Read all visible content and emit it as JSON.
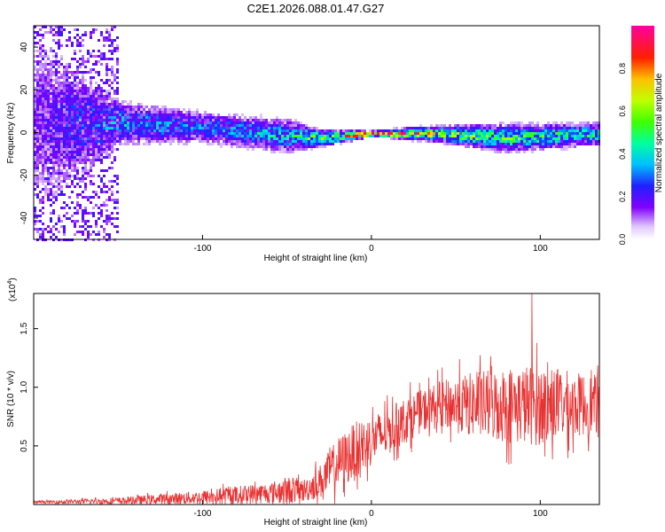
{
  "title": "C2E1.2026.088.01.47.G27",
  "chart_data": [
    {
      "type": "heatmap",
      "xlabel": "Height of straight line (km)",
      "ylabel": "Frequency (Hz)",
      "xlim": [
        -200,
        135
      ],
      "ylim": [
        -50,
        50
      ],
      "xticks": [
        -100,
        0,
        100
      ],
      "yticks": [
        -40,
        -20,
        0,
        20,
        40
      ],
      "colorbar": {
        "label": "Normalized spectral amplitude",
        "range": [
          0,
          1
        ],
        "ticks": [
          "0.0",
          "0.2",
          "0.4",
          "0.6",
          "0.8"
        ],
        "tick_values": [
          0,
          0.2,
          0.4,
          0.6,
          0.8
        ]
      },
      "ridge": {
        "description_values_km": [
          -200,
          -150,
          -100,
          -50,
          -30,
          0,
          40,
          80,
          135
        ],
        "center_hz": [
          5,
          5,
          3,
          -1,
          -2,
          0,
          0,
          -2,
          0
        ],
        "half_width_hz": [
          35,
          8,
          6,
          6,
          3,
          1,
          3,
          5,
          4
        ],
        "peak_amplitude": [
          0.15,
          0.35,
          0.3,
          0.4,
          0.55,
          0.95,
          0.6,
          0.5,
          0.45
        ]
      }
    },
    {
      "type": "line",
      "xlabel": "Height of straight line (km)",
      "ylabel": "SNR (10 * v/v)",
      "y_multiplier_label": "(x10",
      "y_multiplier_exp": "4",
      "y_multiplier_close": ")",
      "xlim": [
        -200,
        135
      ],
      "ylim": [
        0,
        1.8
      ],
      "xticks": [
        -100,
        0,
        100
      ],
      "yticks": [
        "0.5",
        "1.0",
        "1.5"
      ],
      "ytick_values": [
        0.5,
        1.0,
        1.5
      ],
      "color": "#e83030",
      "envelope": {
        "x": [
          -200,
          -150,
          -100,
          -80,
          -60,
          -50,
          -40,
          -30,
          -20,
          -10,
          0,
          10,
          20,
          30,
          40,
          60,
          80,
          100,
          120,
          135
        ],
        "baseline": [
          0.02,
          0.03,
          0.06,
          0.08,
          0.1,
          0.12,
          0.12,
          0.2,
          0.35,
          0.45,
          0.55,
          0.62,
          0.72,
          0.8,
          0.85,
          0.85,
          0.85,
          0.85,
          0.85,
          0.85
        ],
        "amplitude": [
          0.01,
          0.03,
          0.06,
          0.08,
          0.09,
          0.12,
          0.1,
          0.15,
          0.22,
          0.25,
          0.22,
          0.2,
          0.2,
          0.18,
          0.2,
          0.28,
          0.33,
          0.35,
          0.28,
          0.25
        ]
      },
      "peak": {
        "x": 95,
        "y": 1.8
      }
    }
  ]
}
